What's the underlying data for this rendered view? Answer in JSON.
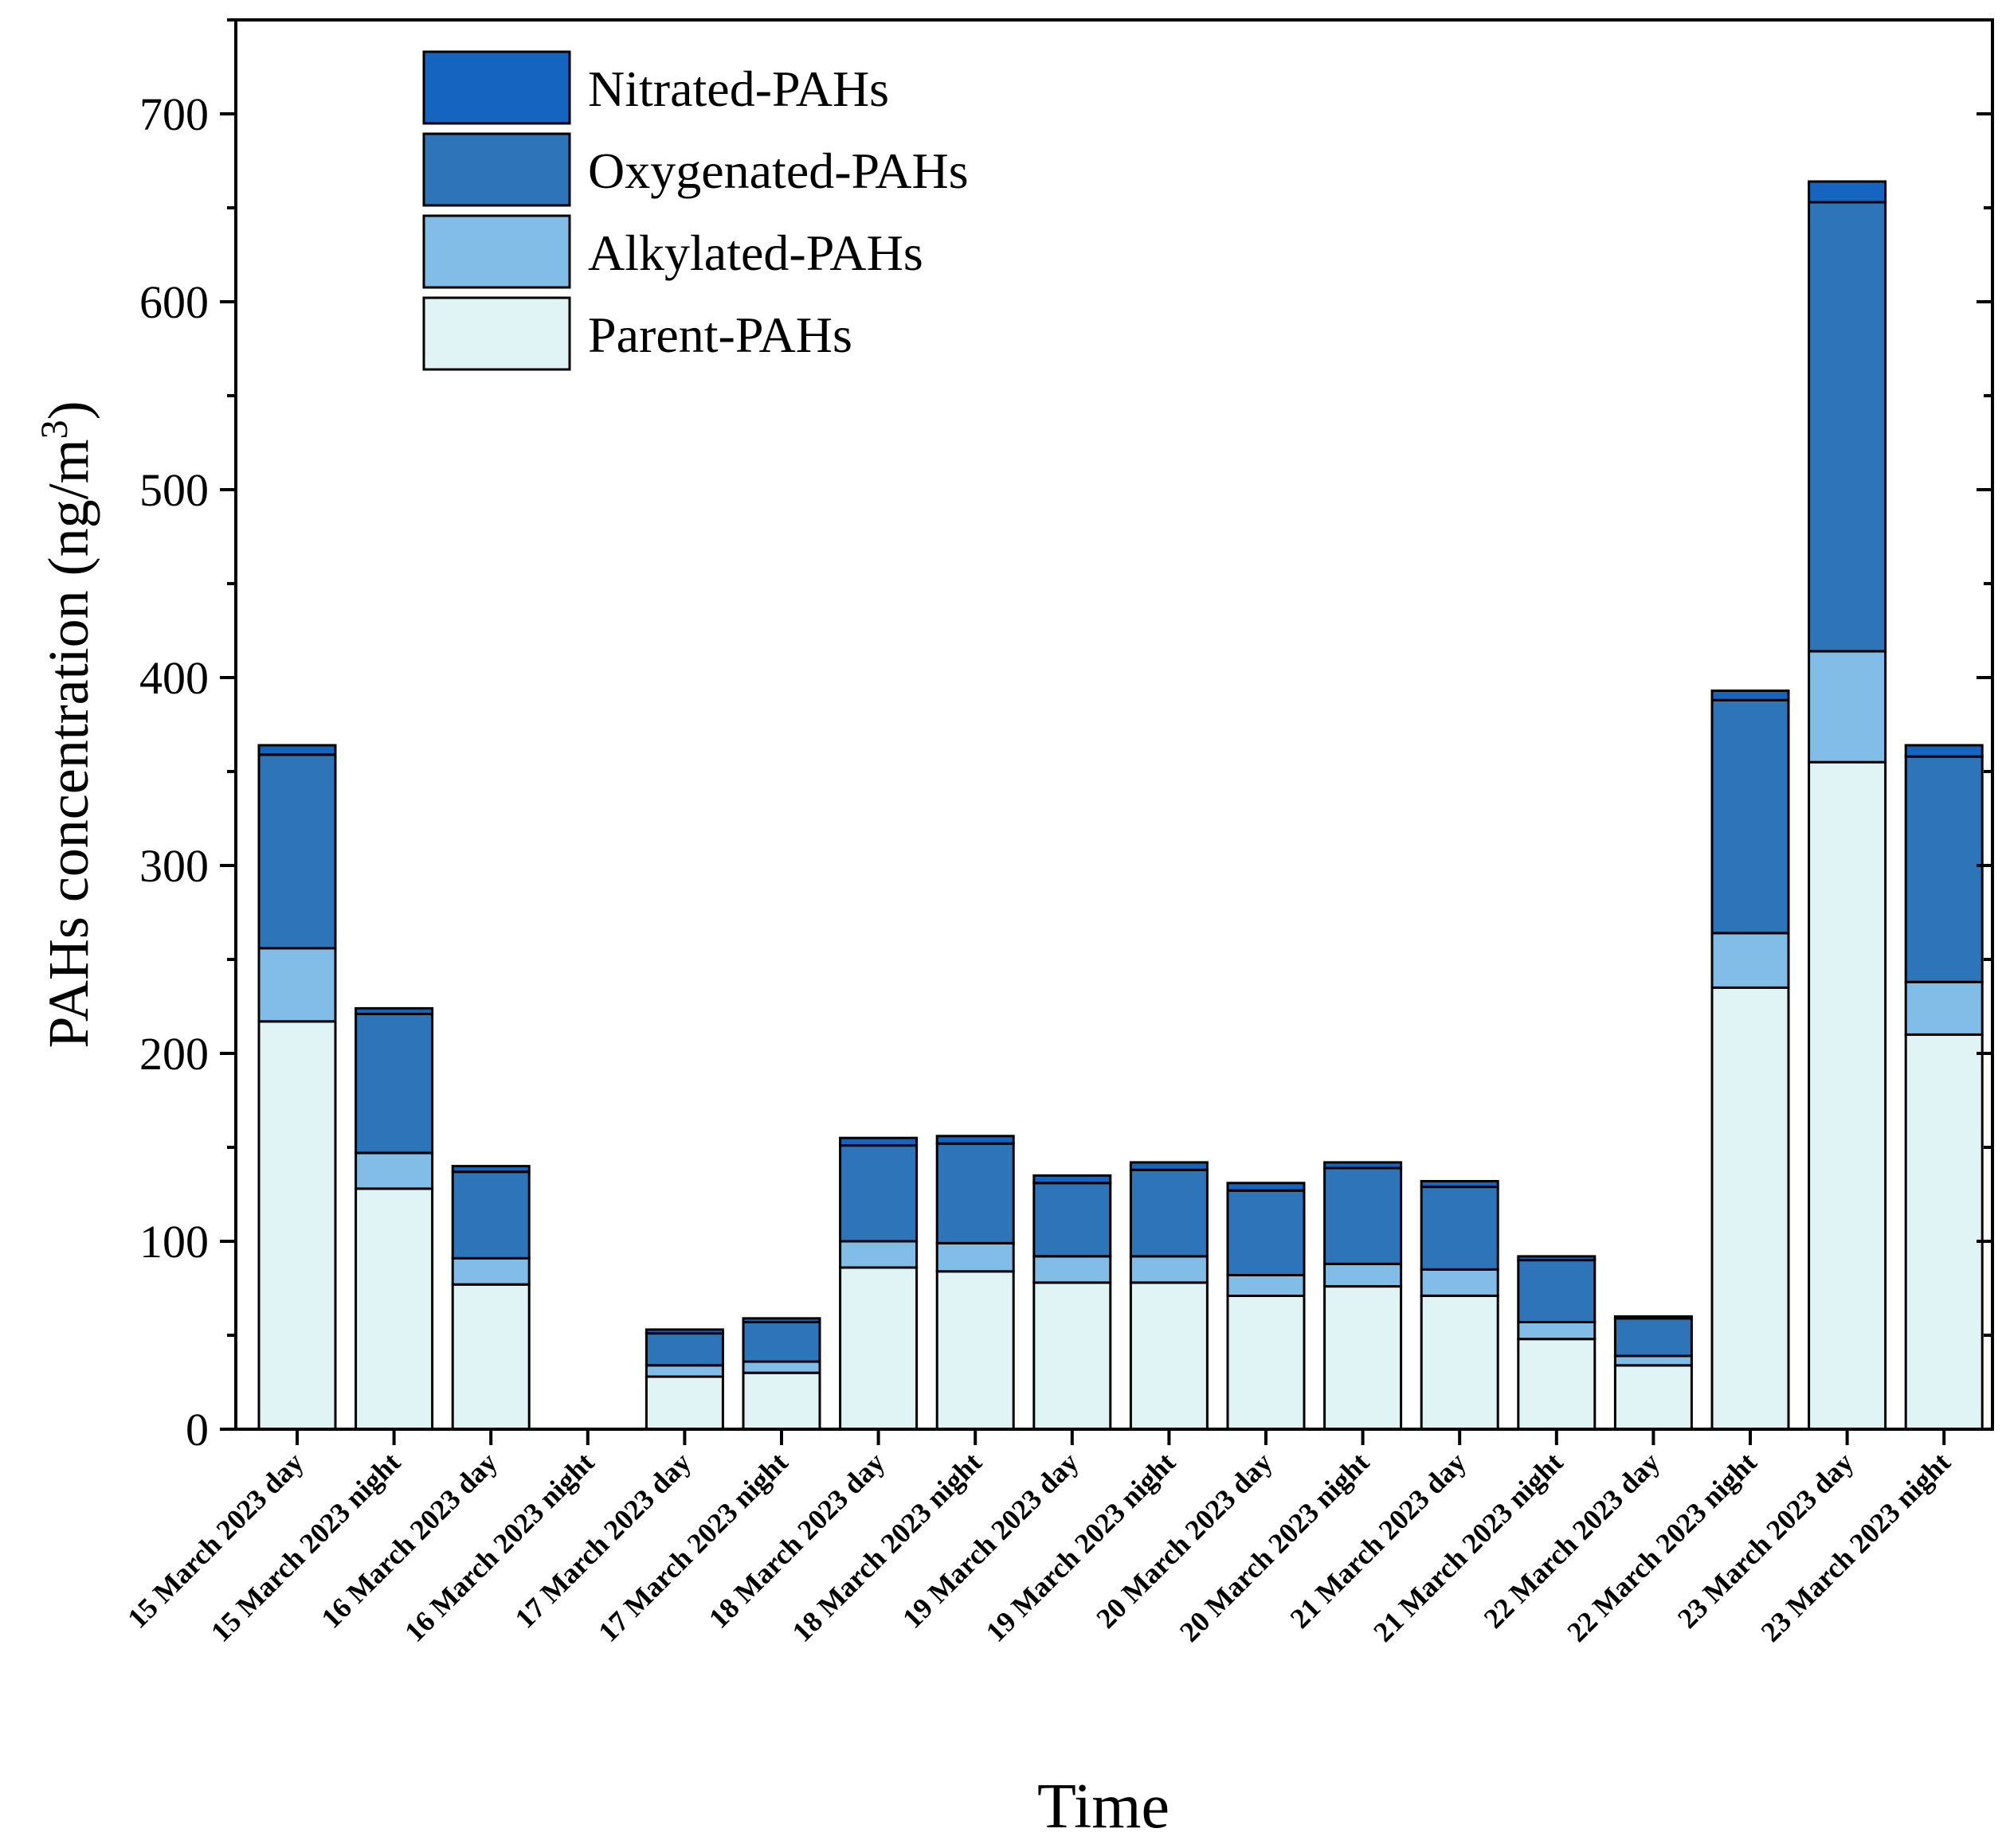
{
  "chart_data": {
    "type": "bar",
    "stacked": true,
    "title": "",
    "xlabel": "Time",
    "ylabel": "PAHs concentration (ng/m",
    "ylabel_superscript": "3",
    "ylabel_close": ")",
    "ylim": [
      0,
      750
    ],
    "yticks": [
      0,
      100,
      200,
      300,
      400,
      500,
      600,
      700
    ],
    "legend_position": "top-left",
    "categories": [
      "15 March 2023 day",
      "15 March 2023 night",
      "16 March 2023 day",
      "16 March 2023 night",
      "17 March 2023 day",
      "17 March 2023 night",
      "18 March 2023 day",
      "18 March 2023 night",
      "19 March 2023 day",
      "19 March 2023 night",
      "20 March 2023 day",
      "20 March 2023 night",
      "21 March 2023 day",
      "21 March 2023 night",
      "22 March 2023 day",
      "22 March 2023 night",
      "23 March 2023 day",
      "23 March 2023 night"
    ],
    "series": [
      {
        "name": "Parent-PAHs",
        "color": "#e0f4f6",
        "values": [
          217,
          128,
          77,
          0,
          28,
          30,
          86,
          84,
          78,
          78,
          71,
          76,
          71,
          48,
          34,
          235,
          355,
          210
        ]
      },
      {
        "name": "Alkylated-PAHs",
        "color": "#82bde8",
        "values": [
          39,
          19,
          14,
          0,
          6,
          6,
          14,
          15,
          14,
          14,
          11,
          12,
          14,
          9,
          5,
          29,
          59,
          28
        ]
      },
      {
        "name": "Oxygenated-PAHs",
        "color": "#2e74b8",
        "values": [
          103,
          74,
          46,
          0,
          17,
          21,
          51,
          53,
          39,
          46,
          45,
          51,
          44,
          33,
          20,
          124,
          239,
          120
        ]
      },
      {
        "name": "Nitrated-PAHs",
        "color": "#1565c0",
        "values": [
          5,
          3,
          3,
          0,
          2,
          2,
          4,
          4,
          4,
          4,
          4,
          3,
          3,
          2,
          1,
          5,
          11,
          6
        ]
      }
    ]
  }
}
